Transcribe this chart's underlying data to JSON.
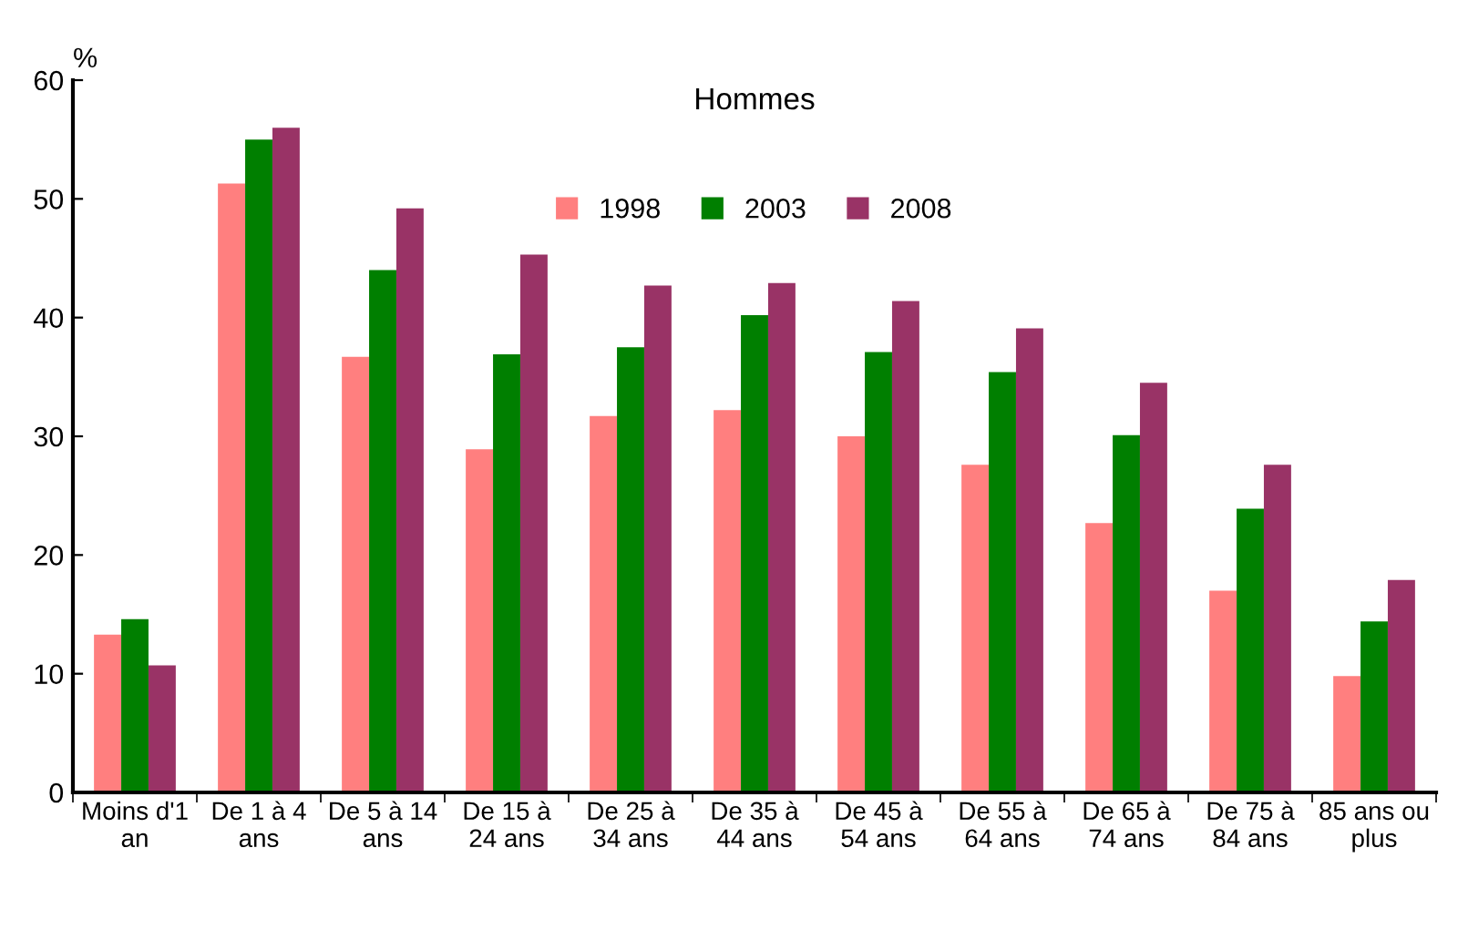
{
  "chart_data": {
    "type": "bar",
    "title": "Hommes",
    "ylabel": "%",
    "categories": [
      "Moins d'1\nan",
      "De 1 à 4\nans",
      "De 5 à 14\nans",
      "De 15 à\n24 ans",
      "De 25 à\n34 ans",
      "De 35 à\n44 ans",
      "De 45 à\n54 ans",
      "De 55 à\n64 ans",
      "De 65 à\n74 ans",
      "De 75 à\n84 ans",
      "85 ans ou\nplus"
    ],
    "series": [
      {
        "name": "1998",
        "color": "#ff7f7f",
        "values": [
          13.3,
          51.3,
          36.7,
          28.9,
          31.7,
          32.2,
          30.0,
          27.6,
          22.7,
          17.0,
          9.8
        ]
      },
      {
        "name": "2003",
        "color": "#007f00",
        "values": [
          14.6,
          55.0,
          44.0,
          36.9,
          37.5,
          40.2,
          37.1,
          35.4,
          30.1,
          23.9,
          14.4
        ]
      },
      {
        "name": "2008",
        "color": "#993366",
        "values": [
          10.7,
          56.0,
          49.2,
          45.3,
          42.7,
          42.9,
          41.4,
          39.1,
          34.5,
          27.6,
          17.9
        ]
      }
    ],
    "ylim": [
      0,
      60
    ],
    "yticks": [
      0,
      10,
      20,
      30,
      40,
      50,
      60
    ],
    "grid": false,
    "legend": "top"
  }
}
